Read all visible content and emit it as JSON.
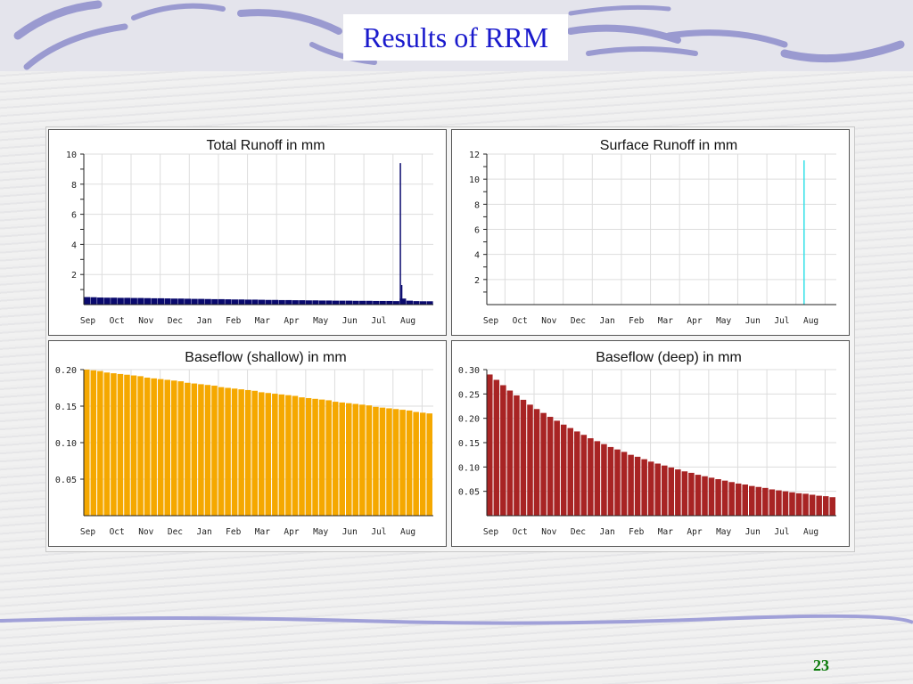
{
  "slide": {
    "title": "Results of RRM",
    "page_number": "23"
  },
  "chart_data": [
    {
      "type": "bar",
      "title": "Total Runoff in mm",
      "color": "#0a0a6e",
      "xlabel": "",
      "ylabel": "",
      "months": [
        "Sep",
        "Oct",
        "Nov",
        "Dec",
        "Jan",
        "Feb",
        "Mar",
        "Apr",
        "May",
        "Jun",
        "Jul",
        "Aug"
      ],
      "ylim": [
        0,
        10
      ],
      "yticks": [
        "2",
        "4",
        "6",
        "8",
        "10"
      ],
      "ytick_values": [
        2,
        4,
        6,
        8,
        10
      ],
      "minor_step": 1,
      "weekly_values": [
        0.5,
        0.49,
        0.47,
        0.46,
        0.46,
        0.45,
        0.45,
        0.44,
        0.44,
        0.43,
        0.42,
        0.42,
        0.41,
        0.4,
        0.4,
        0.39,
        0.38,
        0.38,
        0.37,
        0.36,
        0.36,
        0.35,
        0.34,
        0.34,
        0.33,
        0.33,
        0.32,
        0.31,
        0.31,
        0.3,
        0.3,
        0.29,
        0.29,
        0.28,
        0.28,
        0.27,
        0.27,
        0.26,
        0.26,
        0.26,
        0.25,
        0.25,
        0.25,
        0.24,
        0.24,
        0.24,
        0.23,
        0.4,
        0.26,
        0.23,
        0.22,
        0.22
      ],
      "spikes": [
        {
          "week": 47.0,
          "value": 9.4
        },
        {
          "week": 47.2,
          "value": 1.3
        }
      ],
      "grid": true
    },
    {
      "type": "bar",
      "title": "Surface Runoff in mm",
      "color": "#33e0e8",
      "xlabel": "",
      "ylabel": "",
      "months": [
        "Sep",
        "Oct",
        "Nov",
        "Dec",
        "Jan",
        "Feb",
        "Mar",
        "Apr",
        "May",
        "Jun",
        "Jul",
        "Aug"
      ],
      "ylim": [
        0,
        12
      ],
      "yticks": [
        "2",
        "4",
        "6",
        "8",
        "10",
        "12"
      ],
      "ytick_values": [
        2,
        4,
        6,
        8,
        10,
        12
      ],
      "minor_step": 1,
      "weekly_values": [],
      "spikes": [
        {
          "week": 47.1,
          "value": 11.5
        }
      ],
      "grid": true
    },
    {
      "type": "bar",
      "title": "Baseflow (shallow) in mm",
      "color": "#f5a800",
      "xlabel": "",
      "ylabel": "",
      "months": [
        "Sep",
        "Oct",
        "Nov",
        "Dec",
        "Jan",
        "Feb",
        "Mar",
        "Apr",
        "May",
        "Jun",
        "Jul",
        "Aug"
      ],
      "ylim": [
        0,
        0.2
      ],
      "yticks": [
        "0.05",
        "0.10",
        "0.15",
        "0.20"
      ],
      "ytick_values": [
        0.05,
        0.1,
        0.15,
        0.2
      ],
      "minor_step": 0.05,
      "weekly_values": [
        0.2,
        0.199,
        0.198,
        0.196,
        0.195,
        0.194,
        0.193,
        0.192,
        0.191,
        0.189,
        0.188,
        0.187,
        0.186,
        0.185,
        0.184,
        0.182,
        0.181,
        0.18,
        0.179,
        0.178,
        0.176,
        0.175,
        0.174,
        0.173,
        0.172,
        0.171,
        0.169,
        0.168,
        0.167,
        0.166,
        0.165,
        0.164,
        0.162,
        0.161,
        0.16,
        0.159,
        0.158,
        0.156,
        0.155,
        0.154,
        0.153,
        0.152,
        0.151,
        0.149,
        0.148,
        0.147,
        0.146,
        0.145,
        0.144,
        0.142,
        0.141,
        0.14
      ],
      "spikes": [],
      "grid": true
    },
    {
      "type": "bar",
      "title": "Baseflow (deep) in mm",
      "color": "#a82424",
      "xlabel": "",
      "ylabel": "",
      "months": [
        "Sep",
        "Oct",
        "Nov",
        "Dec",
        "Jan",
        "Feb",
        "Mar",
        "Apr",
        "May",
        "Jun",
        "Jul",
        "Aug"
      ],
      "ylim": [
        0,
        0.3
      ],
      "yticks": [
        "0.05",
        "0.10",
        "0.15",
        "0.20",
        "0.25",
        "0.30"
      ],
      "ytick_values": [
        0.05,
        0.1,
        0.15,
        0.2,
        0.25,
        0.3
      ],
      "minor_step": 0.05,
      "weekly_values": [
        0.29,
        0.279,
        0.268,
        0.257,
        0.247,
        0.238,
        0.228,
        0.219,
        0.211,
        0.203,
        0.195,
        0.187,
        0.18,
        0.173,
        0.166,
        0.159,
        0.153,
        0.147,
        0.141,
        0.136,
        0.131,
        0.125,
        0.121,
        0.116,
        0.111,
        0.107,
        0.103,
        0.099,
        0.095,
        0.091,
        0.088,
        0.084,
        0.081,
        0.078,
        0.075,
        0.072,
        0.069,
        0.066,
        0.064,
        0.061,
        0.059,
        0.057,
        0.054,
        0.052,
        0.05,
        0.048,
        0.046,
        0.045,
        0.043,
        0.041,
        0.04,
        0.038
      ],
      "spikes": [],
      "grid": true
    }
  ]
}
